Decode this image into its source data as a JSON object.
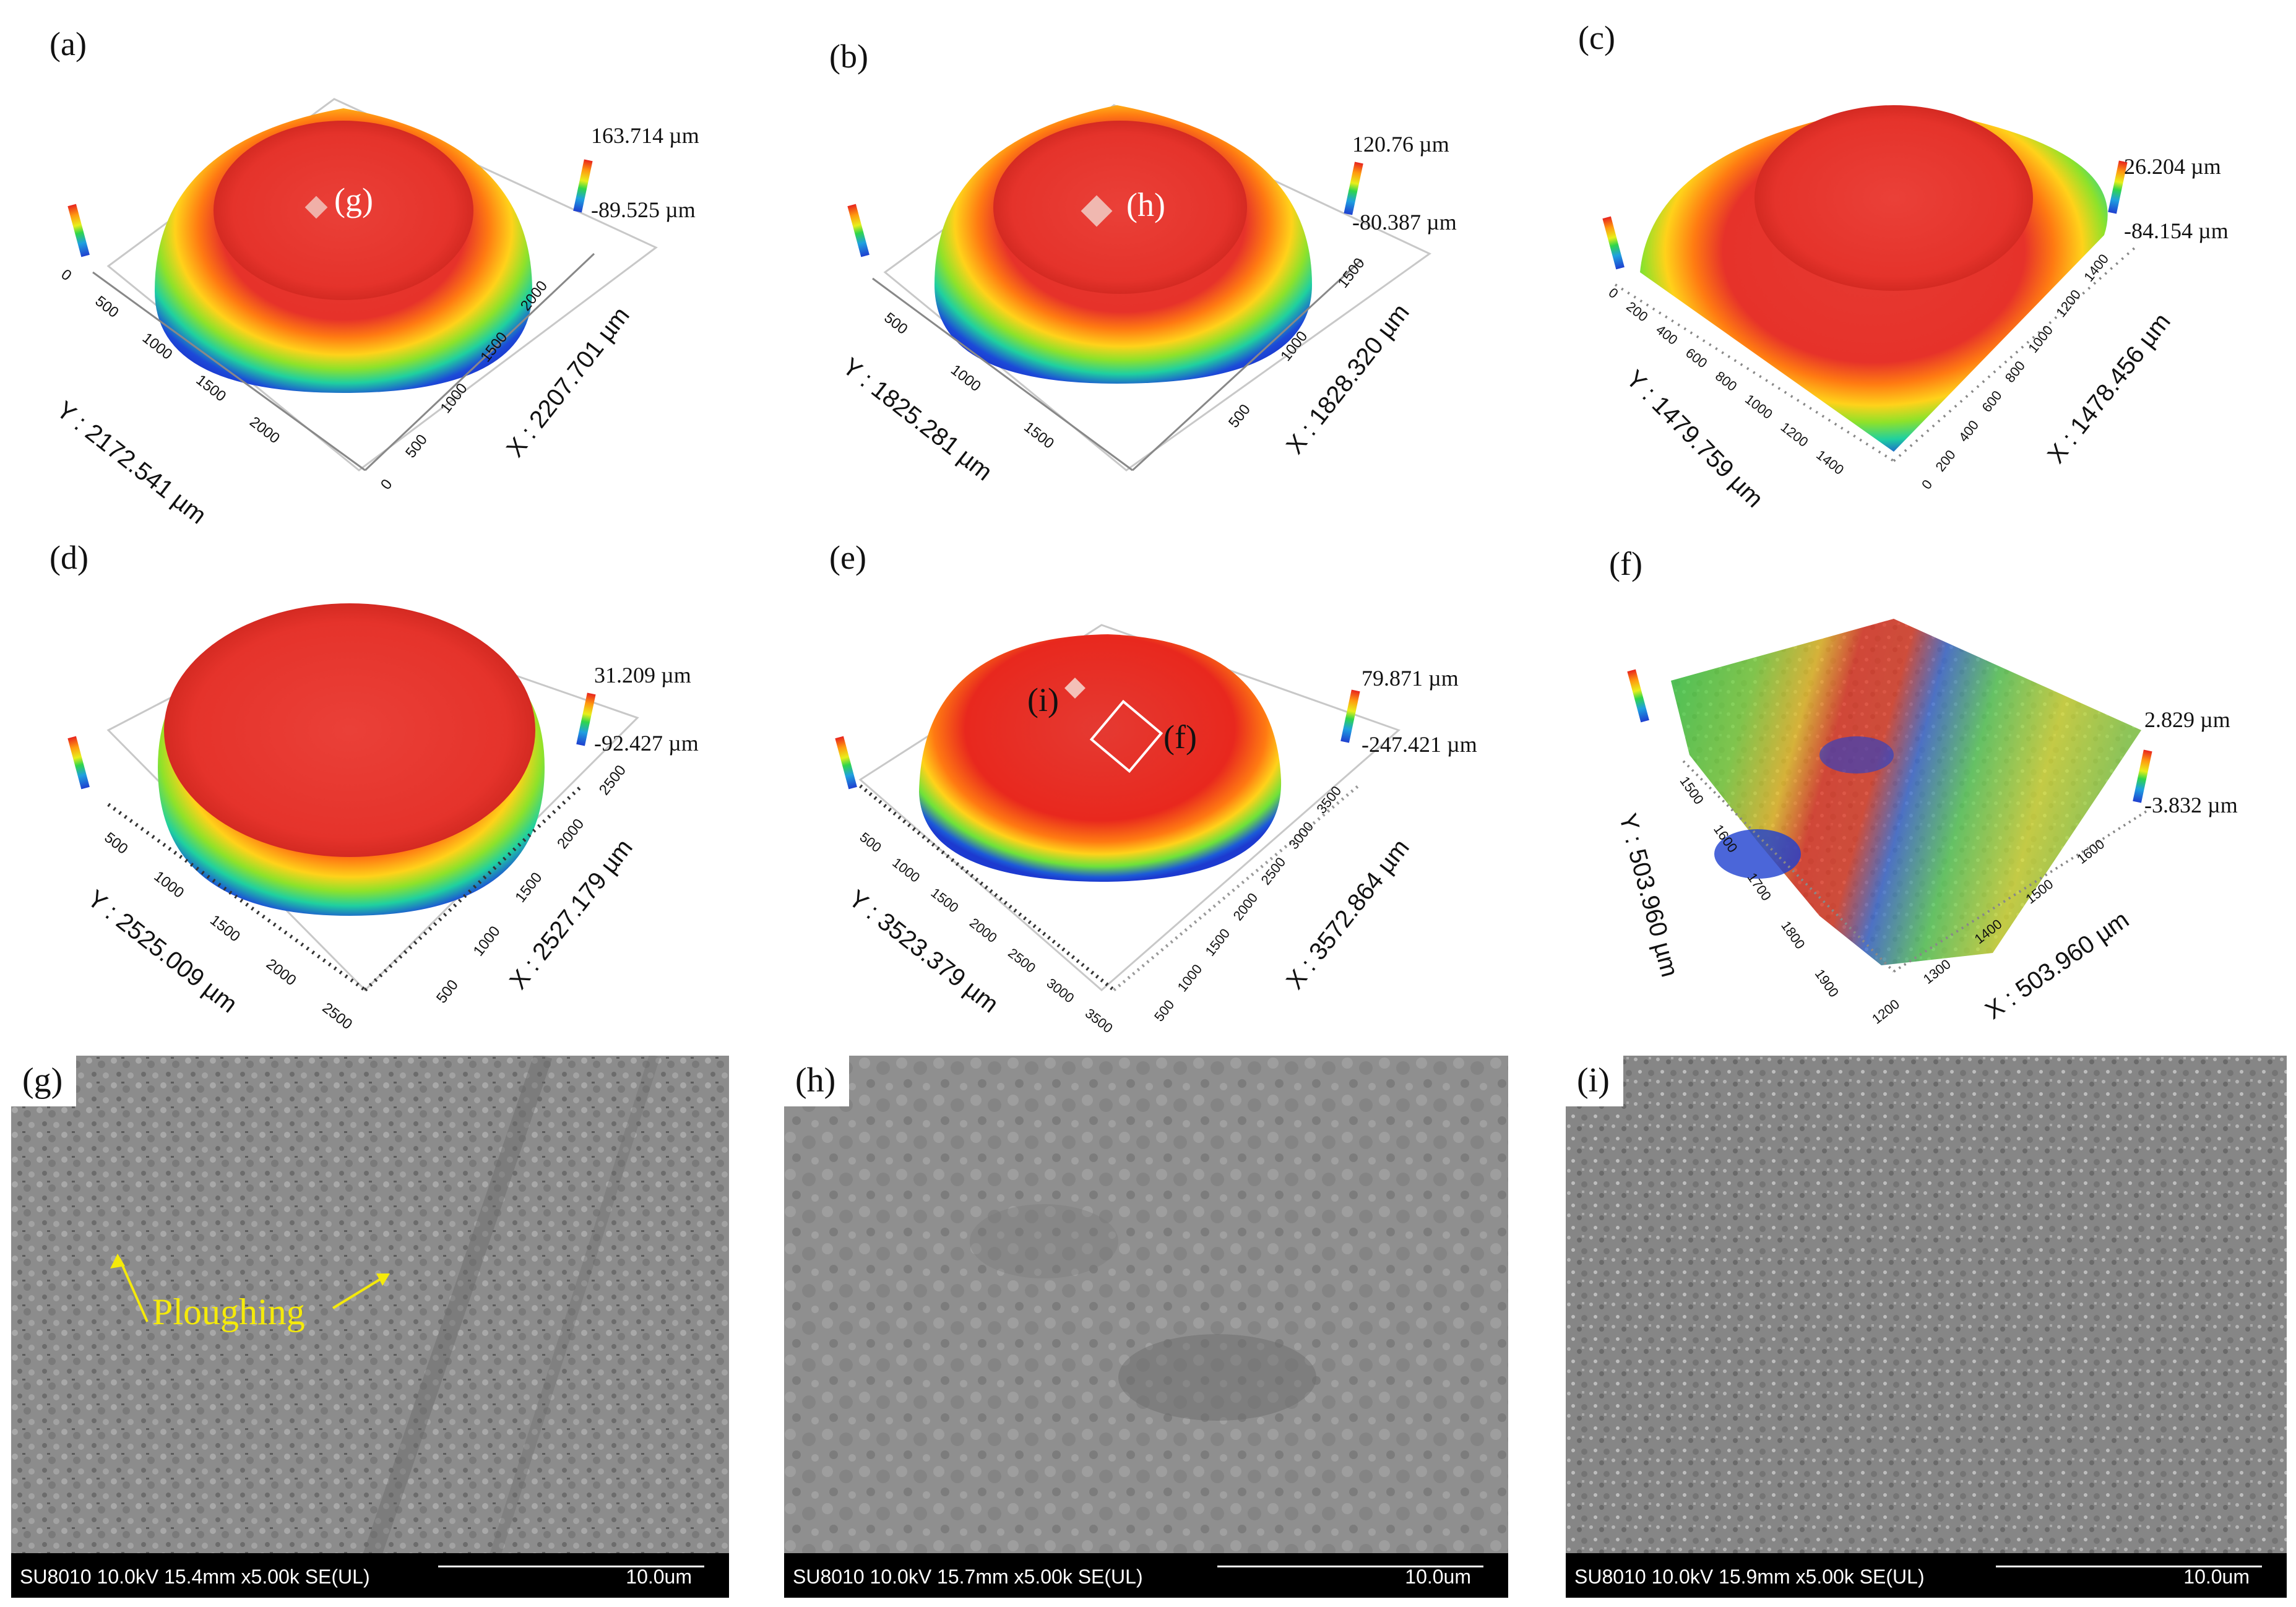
{
  "figure": {
    "panels_3d": [
      {
        "label": "(a)",
        "max": "163.714 µm",
        "min": "-89.525 µm",
        "x_axis": "X : 2207.701 µm",
        "y_axis": "Y : 2172.541 µm",
        "x_ticks": [
          "0",
          "500",
          "1000",
          "1500",
          "2000"
        ],
        "y_ticks": [
          "0",
          "500",
          "1000",
          "1500",
          "2000"
        ],
        "marker": "(g)"
      },
      {
        "label": "(b)",
        "max": "120.76 µm",
        "min": "-80.387 µm",
        "x_axis": "X : 1828.320 µm",
        "y_axis": "Y : 1825.281 µm",
        "x_ticks": [
          "500",
          "1000",
          "1500"
        ],
        "y_ticks": [
          "500",
          "1000",
          "1500"
        ],
        "marker": "(h)"
      },
      {
        "label": "(c)",
        "max": "26.204 µm",
        "min": "-84.154 µm",
        "x_axis": "X : 1478.456 µm",
        "y_axis": "Y : 1479.759 µm",
        "x_ticks": [
          "0",
          "200",
          "400",
          "600",
          "800",
          "1000",
          "1200",
          "1400"
        ],
        "y_ticks": [
          "0",
          "200",
          "400",
          "600",
          "800",
          "1000",
          "1200",
          "1400"
        ]
      },
      {
        "label": "(d)",
        "max": "31.209 µm",
        "min": "-92.427 µm",
        "x_axis": "X : 2527.179 µm",
        "y_axis": "Y : 2525.009 µm",
        "x_ticks": [
          "500",
          "1000",
          "1500",
          "2000",
          "2500"
        ],
        "y_ticks": [
          "500",
          "1000",
          "1500",
          "2000",
          "2500"
        ]
      },
      {
        "label": "(e)",
        "max": "79.871 µm",
        "min": "-247.421 µm",
        "x_axis": "X : 3572.864 µm",
        "y_axis": "Y : 3523.379 µm",
        "x_ticks": [
          "500",
          "1000",
          "1500",
          "2000",
          "2500",
          "3000",
          "3500"
        ],
        "y_ticks": [
          "500",
          "1000",
          "1500",
          "2000",
          "2500",
          "3000",
          "3500"
        ],
        "marker": "(i)",
        "marker2": "(f)"
      },
      {
        "label": "(f)",
        "max": "2.829 µm",
        "min": "-3.832 µm",
        "x_axis": "X : 503.960 µm",
        "y_axis": "Y : 503.960 µm",
        "x_ticks": [
          "1200",
          "1300",
          "1400",
          "1500",
          "1600"
        ],
        "y_ticks": [
          "1500",
          "1600",
          "1700",
          "1800",
          "1900"
        ]
      }
    ],
    "sem_panels": [
      {
        "label": "(g)",
        "info": "SU8010 10.0kV 15.4mm x5.00k SE(UL)",
        "scale": "10.0um",
        "annotation": "Ploughing"
      },
      {
        "label": "(h)",
        "info": "SU8010 10.0kV 15.7mm x5.00k SE(UL)",
        "scale": "10.0um"
      },
      {
        "label": "(i)",
        "info": "SU8010 10.0kV 15.9mm x5.00k SE(UL)",
        "scale": "10.0um"
      }
    ],
    "colors": {
      "colormap": [
        "#1f3fd0",
        "#1fa0e0",
        "#2fd64a",
        "#e8ef1a",
        "#ff9a10",
        "#e8231e"
      ],
      "annotation": "#f5ea0a"
    }
  }
}
